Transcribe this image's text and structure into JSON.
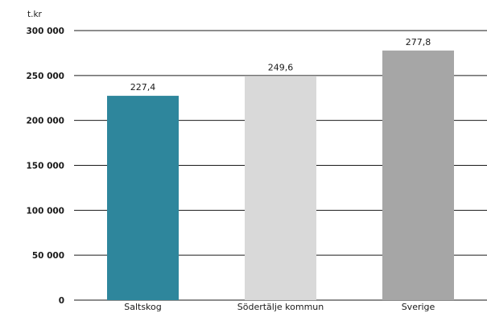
{
  "chart_data": {
    "type": "bar",
    "unit_label": "t.kr",
    "categories": [
      "Saltskog",
      "Södertälje kommun",
      "Sverige"
    ],
    "values": [
      227400,
      249600,
      277800
    ],
    "data_labels": [
      "227,4",
      "249,6",
      "277,8"
    ],
    "colors": [
      "#2e869c",
      "#d9d9d9",
      "#a6a6a6"
    ],
    "yticks": [
      0,
      50000,
      100000,
      150000,
      200000,
      250000,
      300000
    ],
    "ytick_labels": [
      "0",
      "50 000",
      "100 000",
      "150 000",
      "200 000",
      "250 000",
      "300 000"
    ],
    "ylim": [
      0,
      300000
    ],
    "grid": true
  }
}
